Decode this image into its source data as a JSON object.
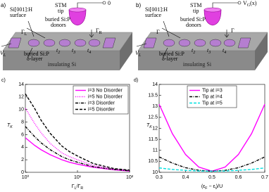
{
  "diagrams": {
    "a": {
      "label": "a)",
      "surface": [
        "Si[001]:H",
        "surface"
      ],
      "tip": [
        "STM",
        "tip"
      ],
      "donors": [
        "buried Si:P",
        "donors"
      ],
      "layer": [
        "buried Si:P",
        "δ-layer"
      ],
      "gamma_left": [
        "Γ",
        "L"
      ],
      "gamma_right": [
        "Γ",
        "R"
      ],
      "v_left": [
        "V",
        "L"
      ],
      "tip_voltage": [
        "0"
      ],
      "hopping": [
        [
          "t",
          "2"
        ],
        [
          "t",
          "3"
        ],
        [
          "t",
          "4"
        ]
      ],
      "substrate": "insulating Si"
    },
    "b": {
      "label": "b)",
      "surface": [
        "Si[001]:H",
        "surface"
      ],
      "tip": [
        "STM",
        "tip"
      ],
      "donors": [
        "buried Si:P",
        "donors"
      ],
      "layer": [
        "buried Si:P",
        "δ-layer"
      ],
      "gamma_left": [
        "Γ"
      ],
      "gamma_right": [
        "Γ"
      ],
      "v_left": [
        "V",
        "L"
      ],
      "tip_voltage": [
        "V",
        "G",
        "(x)"
      ],
      "hopping": [
        [
          "t",
          "2"
        ],
        [
          "t",
          "3"
        ],
        [
          "t",
          "4"
        ]
      ],
      "substrate": "insulating Si"
    }
  },
  "chart_data": [
    {
      "type": "line",
      "label": "c)",
      "xlog": true,
      "ylabel": [
        "T",
        "K"
      ],
      "xlabel": [
        "Γ",
        "L",
        "/Γ",
        "R"
      ],
      "x": [
        1,
        1.5,
        2,
        3,
        5,
        7,
        10,
        20,
        50,
        100
      ],
      "xlim": [
        1,
        100
      ],
      "xticks": [
        {
          "value": 1,
          "label": "10⁰"
        },
        {
          "value": 10,
          "label": "10¹"
        },
        {
          "value": 100,
          "label": "10²"
        }
      ],
      "ylim": [
        0,
        14
      ],
      "yticks": [
        0,
        2,
        4,
        6,
        8,
        10,
        12,
        14
      ],
      "legend": "upper right",
      "series": [
        {
          "name": "i=3 No Disorder",
          "color": "#ff00ff",
          "dash": "solid",
          "values": [
            5.5,
            4.3,
            3.6,
            2.8,
            2.0,
            1.6,
            1.3,
            0.8,
            0.4,
            0.2
          ]
        },
        {
          "name": "i=5 No Disorder",
          "color": "#ff00ff",
          "dash": "dotted",
          "values": [
            10.2,
            7.8,
            6.3,
            4.6,
            3.1,
            2.5,
            2.0,
            1.1,
            0.5,
            0.3
          ]
        },
        {
          "name": "i=3 Disorder",
          "color": "#000000",
          "dash": "dashdot",
          "values": [
            7.3,
            5.7,
            4.7,
            3.6,
            2.5,
            2.0,
            1.6,
            0.9,
            0.45,
            0.25
          ]
        },
        {
          "name": "i=5 Disorder",
          "color": "#000000",
          "dash": "dashed",
          "values": [
            12.5,
            10.2,
            8.3,
            6.2,
            4.2,
            3.3,
            2.6,
            1.4,
            0.6,
            0.35
          ]
        }
      ]
    },
    {
      "type": "line",
      "label": "d)",
      "xlog": false,
      "ylabel": [
        "T",
        "K"
      ],
      "xlabel": [
        "(ε",
        "F",
        " − ε",
        "i",
        ")/U"
      ],
      "x": [
        0.3,
        0.35,
        0.4,
        0.45,
        0.5,
        0.55,
        0.6,
        0.65,
        0.7
      ],
      "xlim": [
        0.3,
        0.7
      ],
      "xticks": [
        0.3,
        0.4,
        0.5,
        0.6,
        0.7
      ],
      "ylim": [
        10,
        14
      ],
      "yticks": [
        10,
        10.5,
        11,
        11.5,
        12,
        12.5,
        13,
        13.5,
        14
      ],
      "legend": "upper center",
      "series": [
        {
          "name": "Tip at i=3",
          "color": "#ff00ff",
          "dash": "solid",
          "values": [
            13.1,
            11.76,
            10.81,
            10.24,
            10.05,
            10.24,
            10.81,
            11.76,
            13.1
          ]
        },
        {
          "name": "Tip at i=4",
          "color": "#000000",
          "dash": "dashdot",
          "values": [
            10.7,
            10.42,
            10.21,
            10.09,
            10.05,
            10.09,
            10.21,
            10.42,
            10.7
          ]
        },
        {
          "name": "Tip at i=5",
          "color": "#00e0e0",
          "dash": "dashed",
          "values": [
            10.2,
            10.13,
            10.09,
            10.06,
            10.05,
            10.06,
            10.09,
            10.13,
            10.2
          ]
        }
      ]
    }
  ]
}
